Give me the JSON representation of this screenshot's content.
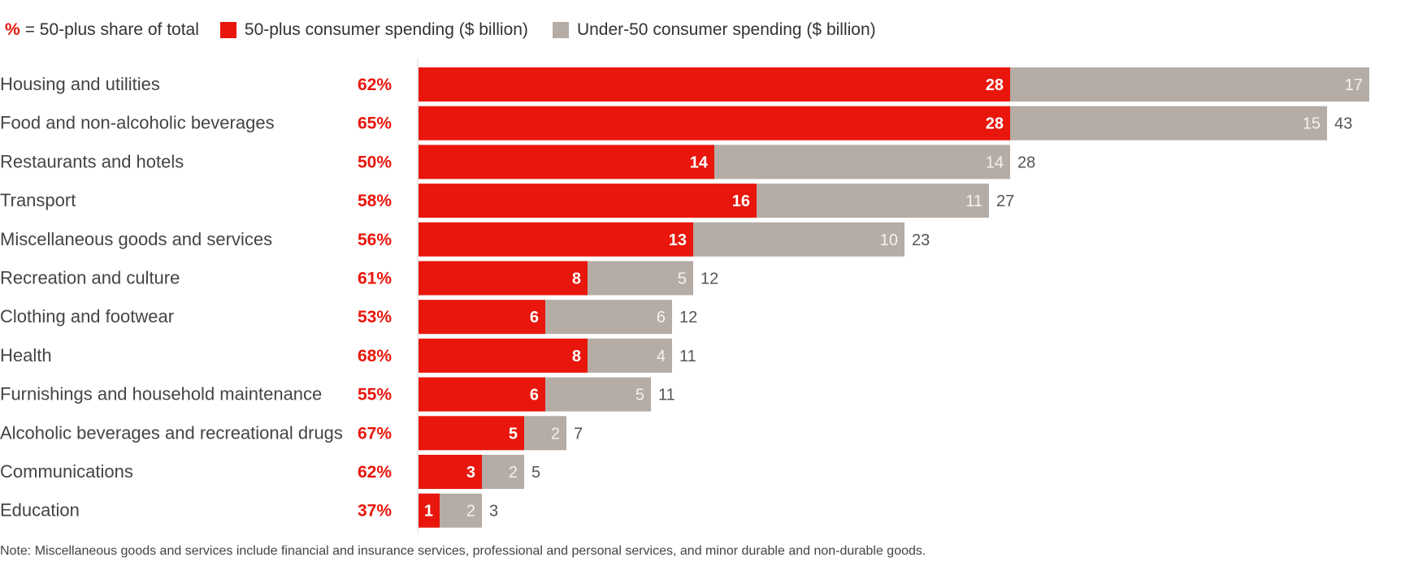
{
  "legend": {
    "pct_symbol": "%",
    "pct_text": "= 50-plus share of total",
    "series_50plus": "50-plus consumer spending ($ billion)",
    "series_under50": "Under-50 consumer spending ($ billion)"
  },
  "colors": {
    "fifty_plus": "#e8160c",
    "under_fifty": "#b5aca5",
    "share_text": "#e8160c",
    "label_text": "#444444",
    "total_text": "#555555"
  },
  "chart_data": {
    "type": "bar",
    "orientation": "horizontal",
    "stacked": true,
    "categories": [
      "Housing and utilities",
      "Food and non-alcoholic beverages",
      "Restaurants and hotels",
      "Transport",
      "Miscellaneous goods and services",
      "Recreation and culture",
      "Clothing and footwear",
      "Health",
      "Furnishings and household maintenance",
      "Alcoholic beverages and recreational drugs",
      "Communications",
      "Education"
    ],
    "shares": [
      "62%",
      "65%",
      "50%",
      "58%",
      "56%",
      "61%",
      "53%",
      "68%",
      "55%",
      "67%",
      "62%",
      "37%"
    ],
    "series": [
      {
        "name": "50-plus consumer spending ($ billion)",
        "values": [
          28,
          28,
          14,
          16,
          13,
          8,
          6,
          8,
          6,
          5,
          3,
          1
        ]
      },
      {
        "name": "Under-50 consumer spending ($ billion)",
        "values": [
          17,
          15,
          14,
          11,
          10,
          5,
          6,
          4,
          5,
          2,
          2,
          2
        ]
      }
    ],
    "totals": [
      "",
      "43",
      "28",
      "27",
      "23",
      "12",
      "12",
      "11",
      "11",
      "7",
      "5",
      "3"
    ]
  },
  "note": "Note: Miscellaneous goods and services include financial and insurance services, professional and personal services, and minor durable and non-durable goods."
}
